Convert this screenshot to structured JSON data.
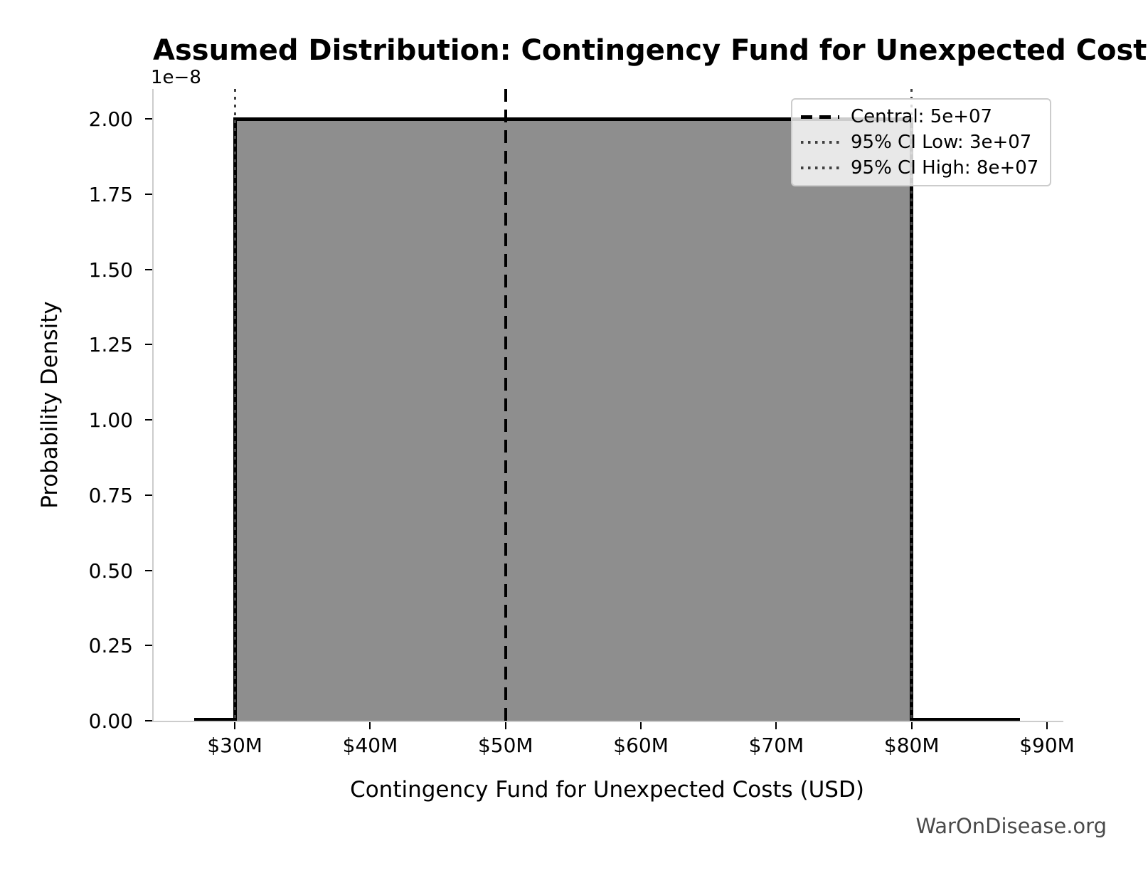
{
  "chart_data": {
    "type": "area",
    "distribution": "uniform",
    "title": "Assumed Distribution: Contingency Fund for Unexpected Costs",
    "xlabel": "Contingency Fund for Unexpected Costs (USD)",
    "ylabel": "Probability Density",
    "y_offset_text": "1e−8",
    "watermark": "WarOnDisease.org",
    "support": [
      30000000,
      80000000
    ],
    "density": 2e-08,
    "pdf_x_extent": [
      27000000,
      88000000
    ],
    "central": 50000000,
    "ci_low": 30000000,
    "ci_high": 80000000,
    "xlim": [
      23950000,
      91050000
    ],
    "ylim": [
      0,
      2.1e-08
    ],
    "grid": false,
    "legend_position": "upper right",
    "x_ticks": [
      {
        "value": 30000000,
        "label": "$30M"
      },
      {
        "value": 40000000,
        "label": "$40M"
      },
      {
        "value": 50000000,
        "label": "$50M"
      },
      {
        "value": 60000000,
        "label": "$60M"
      },
      {
        "value": 70000000,
        "label": "$70M"
      },
      {
        "value": 80000000,
        "label": "$80M"
      },
      {
        "value": 90000000,
        "label": "$90M"
      }
    ],
    "y_ticks": [
      {
        "value": 0,
        "label": "0.00"
      },
      {
        "value": 2.5e-09,
        "label": "0.25"
      },
      {
        "value": 5e-09,
        "label": "0.50"
      },
      {
        "value": 7.5e-09,
        "label": "0.75"
      },
      {
        "value": 1e-08,
        "label": "1.00"
      },
      {
        "value": 1.25e-08,
        "label": "1.25"
      },
      {
        "value": 1.5e-08,
        "label": "1.50"
      },
      {
        "value": 1.75e-08,
        "label": "1.75"
      },
      {
        "value": 2e-08,
        "label": "2.00"
      }
    ],
    "legend": [
      {
        "label": "Central: 5e+07",
        "style": "dashed",
        "color": "#000000"
      },
      {
        "label": "95% CI Low: 3e+07",
        "style": "dotted",
        "color": "#404040"
      },
      {
        "label": "95% CI High: 8e+07",
        "style": "dotted",
        "color": "#404040"
      }
    ],
    "colors": {
      "fill": "#8e8e8e",
      "outline": "#000000",
      "central_line": "#000000",
      "ci_line": "#404040",
      "spine": "#cccccc",
      "tick": "#000000",
      "watermark": "#4a4a4a"
    }
  }
}
